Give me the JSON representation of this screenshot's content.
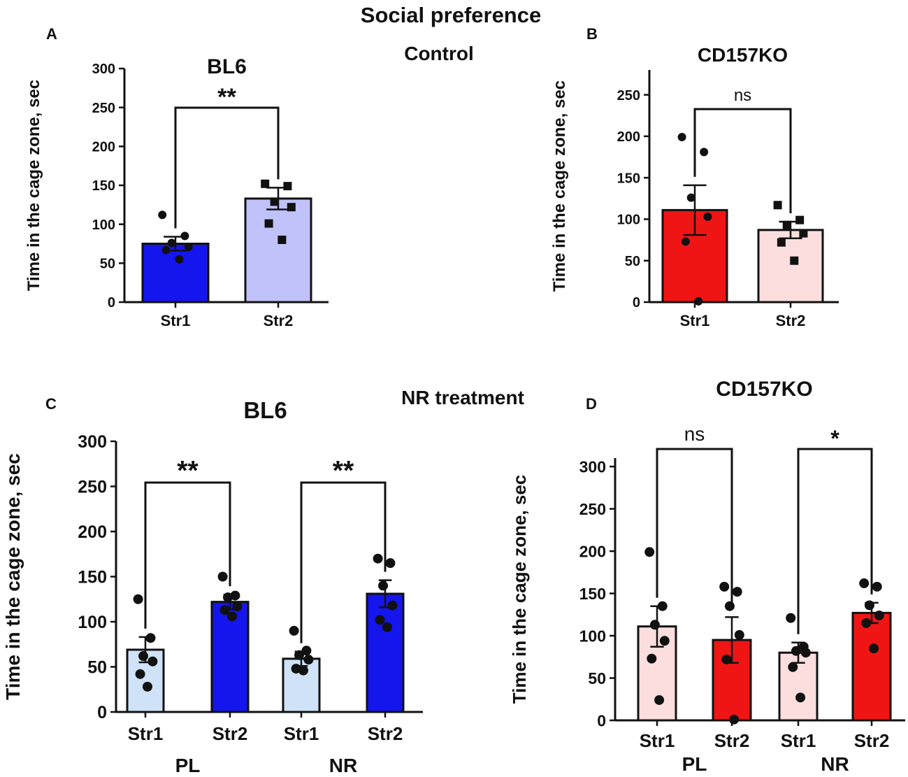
{
  "figure": {
    "main_title": "Social preference",
    "section_control": "Control",
    "section_treatment": "NR treatment",
    "colors": {
      "blue_dark": "#1515ee",
      "blue_light": "#c2c2fa",
      "blue_pale": "#cfe2f7",
      "red": "#f01515",
      "red_light": "#fcdede",
      "ink": "#111111"
    }
  },
  "chart_data": [
    {
      "panel": "A",
      "type": "bar",
      "title": "BL6",
      "ylabel": "Time in the cage zone, sec",
      "xlabel": "",
      "ylim": [
        0,
        300
      ],
      "yticks": [
        0,
        50,
        100,
        150,
        200,
        250,
        300
      ],
      "grid": false,
      "categories": [
        "Str1",
        "Str2"
      ],
      "group_labels": [],
      "values": [
        75,
        133
      ],
      "sem": [
        9,
        14
      ],
      "bar_colors": [
        "#1515ee",
        "#c2c2fa"
      ],
      "point_marker": [
        "circle",
        "square"
      ],
      "points": [
        [
          112,
          85,
          76,
          71,
          67,
          55
        ],
        [
          152,
          149,
          129,
          122,
          101,
          80
        ]
      ],
      "significance": [
        {
          "from": 0,
          "to": 1,
          "label": "**"
        }
      ]
    },
    {
      "panel": "B",
      "type": "bar",
      "title": "CD157KO",
      "ylabel": "Time in the cage zone, sec",
      "xlabel": "",
      "ylim": [
        0,
        280
      ],
      "yticks": [
        0,
        50,
        100,
        150,
        200,
        250
      ],
      "grid": false,
      "categories": [
        "Str1",
        "Str2"
      ],
      "group_labels": [],
      "values": [
        111,
        87
      ],
      "sem": [
        30,
        10
      ],
      "bar_colors": [
        "#f01515",
        "#fcdede"
      ],
      "point_marker": [
        "circle",
        "square"
      ],
      "points": [
        [
          199,
          181,
          126,
          103,
          73,
          1
        ],
        [
          117,
          99,
          93,
          83,
          72,
          50
        ]
      ],
      "significance": [
        {
          "from": 0,
          "to": 1,
          "label": "ns"
        }
      ]
    },
    {
      "panel": "C",
      "type": "bar",
      "title": "BL6",
      "ylabel": "Time in the cage zone, sec",
      "xlabel": "",
      "ylim": [
        0,
        300
      ],
      "yticks": [
        0,
        50,
        100,
        150,
        200,
        250,
        300
      ],
      "grid": false,
      "categories": [
        "Str1",
        "Str2",
        "Str1",
        "Str2"
      ],
      "group_labels": [
        "PL",
        "NR"
      ],
      "values": [
        69,
        122,
        59,
        131
      ],
      "sem": [
        14,
        8,
        8,
        15
      ],
      "bar_colors": [
        "#cfe2f7",
        "#1515ee",
        "#cfe2f7",
        "#1515ee"
      ],
      "point_marker": [
        "circle",
        "circle",
        "circle",
        "circle"
      ],
      "points": [
        [
          125,
          82,
          62,
          56,
          42,
          28
        ],
        [
          150,
          129,
          127,
          117,
          113,
          106
        ],
        [
          90,
          68,
          63,
          58,
          48,
          46
        ],
        [
          170,
          165,
          140,
          118,
          102,
          94
        ]
      ],
      "significance": [
        {
          "from": 0,
          "to": 1,
          "label": "**"
        },
        {
          "from": 2,
          "to": 3,
          "label": "**"
        }
      ]
    },
    {
      "panel": "D",
      "type": "bar",
      "title": "CD157KO",
      "ylabel": "Time in the cage zone, sec",
      "xlabel": "",
      "ylim": [
        0,
        310
      ],
      "yticks": [
        0,
        50,
        100,
        150,
        200,
        250,
        300
      ],
      "grid": false,
      "categories": [
        "Str1",
        "Str2",
        "Str1",
        "Str2"
      ],
      "group_labels": [
        "PL",
        "NR"
      ],
      "values": [
        111,
        95,
        80,
        127
      ],
      "sem": [
        24,
        27,
        12,
        12
      ],
      "bar_colors": [
        "#fcdede",
        "#f01515",
        "#fcdede",
        "#f01515"
      ],
      "point_marker": [
        "circle",
        "circle",
        "circle",
        "circle"
      ],
      "points": [
        [
          199,
          135,
          113,
          94,
          73,
          24
        ],
        [
          158,
          152,
          135,
          101,
          72,
          1
        ],
        [
          121,
          87,
          82,
          80,
          63,
          27
        ],
        [
          162,
          158,
          136,
          124,
          115,
          85
        ]
      ],
      "significance": [
        {
          "from": 0,
          "to": 1,
          "label": "ns"
        },
        {
          "from": 2,
          "to": 3,
          "label": "*"
        }
      ]
    }
  ]
}
